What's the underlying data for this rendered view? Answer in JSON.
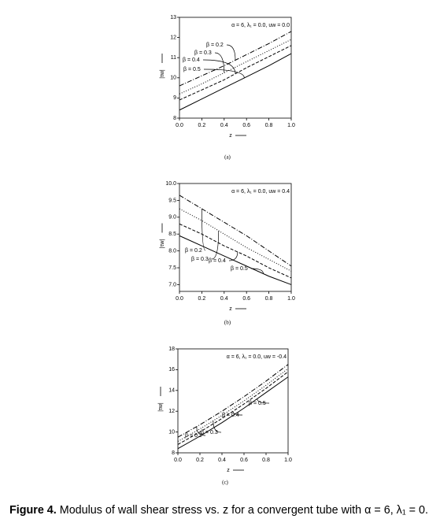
{
  "chart_data": [
    {
      "type": "line",
      "panel_label": "(a)",
      "annotation": "α = 6, λ₁ = 0.0, uw = 0.0",
      "xlabel": "z",
      "ylabel": "|τw|",
      "x": [
        0,
        0.2,
        0.4,
        0.6,
        0.8,
        1.0
      ],
      "series": [
        {
          "name": "β = 0.2",
          "color": "#000",
          "dash": "dashdot",
          "values": [
            9.6,
            10.1,
            10.6,
            11.15,
            11.7,
            12.3
          ]
        },
        {
          "name": "β = 0.3",
          "color": "#000",
          "dash": "dotted",
          "values": [
            9.2,
            9.7,
            10.25,
            10.8,
            11.35,
            11.9
          ]
        },
        {
          "name": "β = 0.4",
          "color": "#000",
          "dash": "dashed",
          "values": [
            8.9,
            9.4,
            9.9,
            10.5,
            11.05,
            11.6
          ]
        },
        {
          "name": "β = 0.5",
          "color": "#000",
          "dash": "solid",
          "values": [
            8.4,
            8.95,
            9.5,
            10.05,
            10.6,
            11.2
          ]
        }
      ],
      "xlim": [
        0,
        1.0
      ],
      "ylim": [
        8,
        13
      ],
      "xticks": [
        {
          "value": 0,
          "label": "0.0"
        },
        0.2,
        0.4,
        0.6,
        0.8,
        {
          "value": 1.0,
          "label": "1.0"
        }
      ],
      "yticks": [
        8,
        9,
        10,
        11,
        12,
        13
      ]
    },
    {
      "type": "line",
      "panel_label": "(b)",
      "annotation": "α = 6, λ₁ = 0.0, uw = 0.4",
      "xlabel": "z",
      "ylabel": "|τw|",
      "x": [
        0,
        0.2,
        0.4,
        0.6,
        0.8,
        1.0
      ],
      "series": [
        {
          "name": "β = 0.2",
          "color": "#000",
          "dash": "dashdot",
          "values": [
            9.65,
            9.25,
            8.85,
            8.45,
            8.0,
            7.55
          ]
        },
        {
          "name": "β = 0.3",
          "color": "#000",
          "dash": "dotted",
          "values": [
            9.25,
            8.9,
            8.5,
            8.1,
            7.75,
            7.4
          ]
        },
        {
          "name": "β = 0.4",
          "color": "#000",
          "dash": "dashed",
          "values": [
            8.8,
            8.5,
            8.15,
            7.85,
            7.5,
            7.2
          ]
        },
        {
          "name": "β = 0.5",
          "color": "#000",
          "dash": "solid",
          "values": [
            8.45,
            8.15,
            7.85,
            7.55,
            7.25,
            7.0
          ]
        }
      ],
      "xlim": [
        0,
        1.0
      ],
      "ylim": [
        6.8,
        10.0
      ],
      "xticks": [
        {
          "value": 0,
          "label": "0.0"
        },
        0.2,
        0.4,
        0.6,
        0.8,
        {
          "value": 1.0,
          "label": "1.0"
        }
      ],
      "yticks": [
        {
          "value": 7,
          "label": "7.0"
        },
        7.5,
        {
          "value": 8,
          "label": "8.0"
        },
        8.5,
        {
          "value": 9,
          "label": "9.0"
        },
        9.5,
        {
          "value": 10,
          "label": "10.0"
        }
      ]
    },
    {
      "type": "line",
      "panel_label": "(c)",
      "annotation": "α = 6, λ₁ = 0.0, uw = -0.4",
      "xlabel": "z",
      "ylabel": "|τw|",
      "x": [
        0,
        0.2,
        0.4,
        0.6,
        0.8,
        1.0
      ],
      "series": [
        {
          "name": "β = 0.2",
          "color": "#000",
          "dash": "dashdot",
          "values": [
            9.5,
            10.7,
            12.0,
            13.4,
            14.9,
            16.5
          ]
        },
        {
          "name": "β = 0.3",
          "color": "#000",
          "dash": "dotted",
          "values": [
            9.1,
            10.3,
            11.6,
            13.0,
            14.5,
            16.1
          ]
        },
        {
          "name": "β = 0.4",
          "color": "#000",
          "dash": "dashed",
          "values": [
            8.8,
            10.0,
            11.3,
            12.7,
            14.2,
            15.8
          ]
        },
        {
          "name": "β = 0.5",
          "color": "#000",
          "dash": "solid",
          "values": [
            8.4,
            9.6,
            10.9,
            12.3,
            13.8,
            15.3
          ]
        }
      ],
      "xlim": [
        0,
        1.0
      ],
      "ylim": [
        8,
        18
      ],
      "xticks": [
        {
          "value": 0,
          "label": "0.0"
        },
        0.2,
        0.4,
        0.6,
        0.8,
        {
          "value": 1.0,
          "label": "1.0"
        }
      ],
      "yticks": [
        8,
        10,
        12,
        14,
        16,
        18
      ]
    }
  ],
  "caption": {
    "label": "Figure 4.",
    "text": "Modulus of wall shear stress vs. z for a convergent tube with α = 6, λ₁ = 0."
  }
}
